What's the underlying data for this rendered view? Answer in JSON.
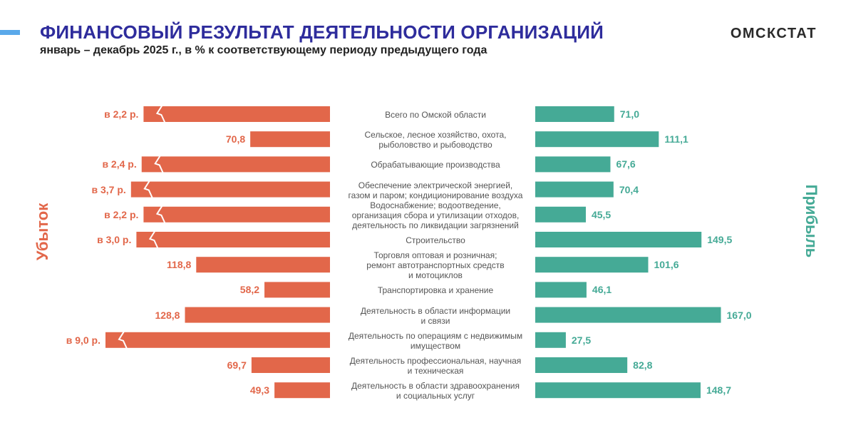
{
  "header": {
    "title": "ФИНАНСОВЫЙ РЕЗУЛЬТАТ ДЕЯТЕЛЬНОСТИ ОРГАНИЗАЦИЙ",
    "subtitle": "январь – декабрь 2025 г., в % к соответствующему периоду предыдущего года",
    "brand": "ОМСКСТАТ"
  },
  "colors": {
    "loss": "#e2674a",
    "profit": "#45aa96",
    "title": "#2e2c9c",
    "accent": "#5aa9ea"
  },
  "chart_data": {
    "type": "bar",
    "title": "ФИНАНСОВЫЙ РЕЗУЛЬТАТ ДЕЯТЕЛЬНОСТИ ОРГАНИЗАЦИЙ",
    "subtitle": "январь – декабрь 2025 г., в % к соответствующему периоду предыдущего года",
    "orientation": "horizontal-butterfly",
    "left_axis_label": "Убыток",
    "right_axis_label": "Прибыль",
    "unit": "% к соответствующему периоду предыдущего года",
    "categories": [
      "Всего по Омской области",
      "Сельское, лесное хозяйство, охота,\nрыболовство и  рыбоводство",
      "Обрабатывающие производства",
      "Обеспечение электрической энергией,\nгазом и паром; кондиционирование воздуха",
      "Водоснабжение; водоотведение,\nорганизация сбора и утилизации отходов,\nдеятельность по ликвидации загрязнений",
      "Строительство",
      "Торговля оптовая и розничная;\nремонт автотранспортных средств\nи мотоциклов",
      "Транспортировка и хранение",
      "Деятельность в области информации\nи связи",
      "Деятельность по операциям с недвижимым\nимуществом",
      "Деятельность профессиональная, научная\nи техническая",
      "Деятельность в области здравоохранения\nи социальных услуг"
    ],
    "series": [
      {
        "name": "Убыток",
        "labels": [
          "в 2,2 р.",
          "70,8",
          "в 2,4 р.",
          "в 3,7 р.",
          "в 2,2 р.",
          "в 3,0 р.",
          "118,8",
          "58,2",
          "128,8",
          "в 9,0 р.",
          "69,7",
          "49,3"
        ],
        "values": [
          220,
          70.8,
          240,
          370,
          220,
          300,
          118.8,
          58.2,
          128.8,
          900,
          69.7,
          49.3
        ],
        "broken": [
          true,
          false,
          true,
          true,
          true,
          true,
          false,
          false,
          false,
          true,
          false,
          false
        ]
      },
      {
        "name": "Прибыль",
        "labels": [
          "71,0",
          "111,1",
          "67,6",
          "70,4",
          "45,5",
          "149,5",
          "101,6",
          "46,1",
          "167,0",
          "27,5",
          "82,8",
          "148,7"
        ],
        "values": [
          71.0,
          111.1,
          67.6,
          70.4,
          45.5,
          149.5,
          101.6,
          46.1,
          167.0,
          27.5,
          82.8,
          148.7
        ]
      }
    ]
  }
}
